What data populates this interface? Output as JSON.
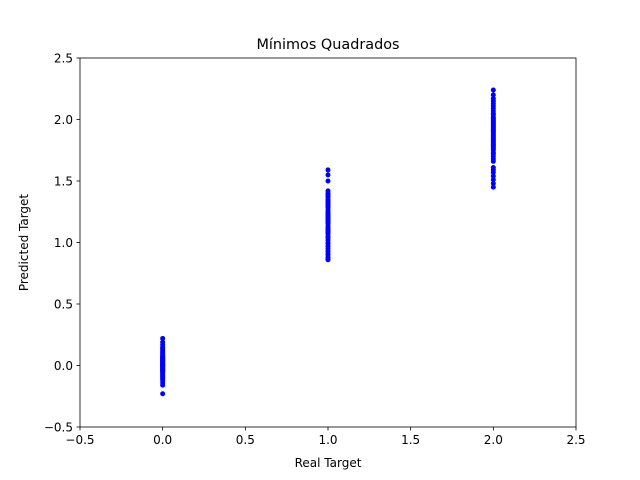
{
  "chart_data": {
    "type": "scatter",
    "title": "Mínimos Quadrados",
    "xlabel": "Real Target",
    "ylabel": "Predicted Target",
    "xlim": [
      -0.5,
      2.5
    ],
    "ylim": [
      -0.5,
      2.5
    ],
    "xticks": [
      -0.5,
      0.0,
      0.5,
      1.0,
      1.5,
      2.0,
      2.5
    ],
    "yticks": [
      -0.5,
      0.0,
      0.5,
      1.0,
      1.5,
      2.0,
      2.5
    ],
    "xtick_labels": [
      "−0.5",
      "0.0",
      "0.5",
      "1.0",
      "1.5",
      "2.0",
      "2.5"
    ],
    "ytick_labels": [
      "−0.5",
      "0.0",
      "0.5",
      "1.0",
      "1.5",
      "2.0",
      "2.5"
    ],
    "grid": false,
    "marker_color": "#0000ff",
    "series": [
      {
        "x": [
          0,
          0,
          0,
          0,
          0,
          0,
          0,
          0,
          0,
          0,
          0,
          0,
          0,
          0,
          0,
          0,
          0,
          0,
          0,
          0,
          0,
          0,
          0,
          0,
          0,
          0,
          0,
          0,
          0,
          0,
          0,
          0,
          0,
          0,
          0,
          0,
          0,
          0,
          0,
          0,
          0,
          0,
          0,
          0,
          0,
          0,
          0,
          0,
          0,
          0,
          1,
          1,
          1,
          1,
          1,
          1,
          1,
          1,
          1,
          1,
          1,
          1,
          1,
          1,
          1,
          1,
          1,
          1,
          1,
          1,
          1,
          1,
          1,
          1,
          1,
          1,
          1,
          1,
          1,
          1,
          1,
          1,
          1,
          1,
          1,
          1,
          1,
          1,
          1,
          1,
          1,
          1,
          1,
          1,
          1,
          1,
          1,
          1,
          1,
          1,
          2,
          2,
          2,
          2,
          2,
          2,
          2,
          2,
          2,
          2,
          2,
          2,
          2,
          2,
          2,
          2,
          2,
          2,
          2,
          2,
          2,
          2,
          2,
          2,
          2,
          2,
          2,
          2,
          2,
          2,
          2,
          2,
          2,
          2,
          2,
          2,
          2,
          2,
          2,
          2,
          2,
          2,
          2,
          2,
          2,
          2,
          2,
          2,
          2,
          2
        ],
        "y": [
          -0.23,
          -0.16,
          -0.14,
          -0.12,
          -0.1,
          -0.09,
          -0.08,
          -0.07,
          -0.06,
          -0.05,
          -0.05,
          -0.04,
          -0.03,
          -0.03,
          -0.02,
          -0.02,
          -0.01,
          -0.01,
          0.0,
          0.0,
          0.0,
          0.01,
          0.01,
          0.02,
          0.02,
          0.03,
          0.03,
          0.04,
          0.04,
          0.05,
          0.05,
          0.06,
          0.07,
          0.07,
          0.08,
          0.09,
          0.1,
          0.11,
          0.12,
          0.13,
          0.15,
          0.17,
          0.19,
          0.22,
          -0.11,
          -0.04,
          0.0,
          0.02,
          0.06,
          0.14,
          0.86,
          0.87,
          0.88,
          0.9,
          0.91,
          0.93,
          0.95,
          0.97,
          0.99,
          1.0,
          1.02,
          1.04,
          1.05,
          1.07,
          1.08,
          1.09,
          1.1,
          1.11,
          1.12,
          1.13,
          1.15,
          1.16,
          1.17,
          1.18,
          1.19,
          1.19,
          1.2,
          1.21,
          1.22,
          1.23,
          1.24,
          1.25,
          1.26,
          1.28,
          1.29,
          1.3,
          1.31,
          1.32,
          1.33,
          1.34,
          1.35,
          1.37,
          1.38,
          1.39,
          1.4,
          1.42,
          1.5,
          1.55,
          1.59,
          1.18,
          1.45,
          1.48,
          1.51,
          1.54,
          1.57,
          1.59,
          1.61,
          1.66,
          1.68,
          1.7,
          1.72,
          1.73,
          1.75,
          1.76,
          1.77,
          1.78,
          1.79,
          1.8,
          1.81,
          1.82,
          1.83,
          1.84,
          1.85,
          1.86,
          1.87,
          1.88,
          1.89,
          1.9,
          1.91,
          1.92,
          1.93,
          1.94,
          1.95,
          1.96,
          1.97,
          1.98,
          1.99,
          2.0,
          2.01,
          2.02,
          2.04,
          2.05,
          2.07,
          2.09,
          2.11,
          2.13,
          2.15,
          2.17,
          2.2,
          2.24
        ]
      }
    ]
  }
}
